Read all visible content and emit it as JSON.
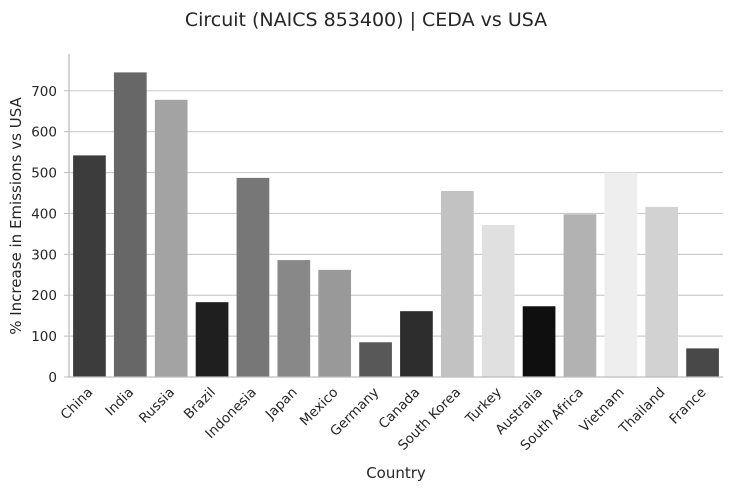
{
  "chart_data": {
    "type": "bar",
    "title": "Circuit (NAICS 853400) | CEDA vs USA",
    "xlabel": "Country",
    "ylabel": "% Increase in Emissions vs USA",
    "ylim": [
      0,
      790
    ],
    "yticks": [
      0,
      100,
      200,
      300,
      400,
      500,
      600,
      700
    ],
    "grid": "horizontal",
    "categories": [
      "China",
      "India",
      "Russia",
      "Brazil",
      "Indonesia",
      "Japan",
      "Mexico",
      "Germany",
      "Canada",
      "South Korea",
      "Turkey",
      "Australia",
      "South Africa",
      "Vietnam",
      "Thailand",
      "France"
    ],
    "values": [
      542,
      745,
      678,
      183,
      487,
      286,
      262,
      85,
      161,
      455,
      372,
      173,
      398,
      500,
      416,
      70
    ],
    "colors": [
      "#3c3c3c",
      "#676767",
      "#a3a3a3",
      "#1f1f1f",
      "#777777",
      "#888888",
      "#999999",
      "#585858",
      "#2d2d2d",
      "#c2c2c2",
      "#e0e0e0",
      "#0f0f0f",
      "#b2b2b2",
      "#eeeeee",
      "#d2d2d2",
      "#484848"
    ]
  }
}
